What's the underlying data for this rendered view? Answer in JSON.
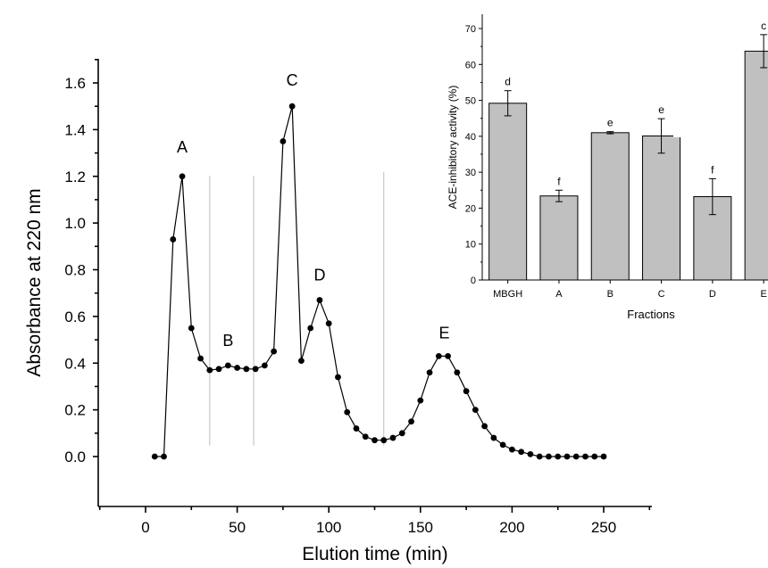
{
  "chart_data": [
    {
      "type": "line",
      "title": "",
      "xlabel": "Elution time (min)",
      "ylabel": "Absorbance at 220 nm",
      "xlim": [
        -25,
        275
      ],
      "ylim": [
        -0.3,
        1.7
      ],
      "xticks": [
        "0",
        "50",
        "100",
        "150",
        "200",
        "250"
      ],
      "yticks": [
        "0.0",
        "0.2",
        "0.4",
        "0.6",
        "0.8",
        "1.0",
        "1.2",
        "1.4",
        "1.6"
      ],
      "grid": false,
      "markers": "filled circles",
      "x": [
        5,
        10,
        15,
        20,
        25,
        30,
        35,
        40,
        45,
        50,
        55,
        60,
        65,
        70,
        75,
        80,
        85,
        90,
        95,
        100,
        105,
        110,
        115,
        120,
        125,
        130,
        135,
        140,
        145,
        150,
        155,
        160,
        165,
        170,
        175,
        180,
        185,
        190,
        195,
        200,
        205,
        210,
        215,
        220,
        225,
        230,
        235,
        240,
        245,
        250
      ],
      "y": [
        0.0,
        0.0,
        0.93,
        1.2,
        0.55,
        0.42,
        0.37,
        0.375,
        0.39,
        0.38,
        0.375,
        0.375,
        0.39,
        0.45,
        1.35,
        1.5,
        0.41,
        0.55,
        0.67,
        0.57,
        0.34,
        0.19,
        0.12,
        0.085,
        0.07,
        0.07,
        0.08,
        0.1,
        0.15,
        0.24,
        0.36,
        0.43,
        0.43,
        0.36,
        0.28,
        0.2,
        0.13,
        0.08,
        0.05,
        0.03,
        0.02,
        0.01,
        0.0,
        0.0,
        0.0,
        0.0,
        0.0,
        0.0,
        0.0,
        0.0
      ],
      "peak_labels": [
        {
          "text": "A",
          "x": 20,
          "y": 1.2
        },
        {
          "text": "B",
          "x": 45,
          "y": 0.39
        },
        {
          "text": "C",
          "x": 80,
          "y": 1.5
        },
        {
          "text": "D",
          "x": 95,
          "y": 0.67
        },
        {
          "text": "E",
          "x": 163,
          "y": 0.43
        }
      ],
      "fraction_cut_times": [
        35,
        59,
        130
      ]
    },
    {
      "type": "bar",
      "title": "",
      "xlabel": "Fractions",
      "ylabel": "ACE-inhibitory activity (%)",
      "ylim": [
        0,
        75
      ],
      "yticks": [
        "0",
        "10",
        "20",
        "30",
        "40",
        "50",
        "60",
        "70"
      ],
      "grid": false,
      "categories": [
        "MBGH",
        "A",
        "B",
        "C",
        "D",
        "E"
      ],
      "values": [
        49.2,
        23.4,
        41.0,
        40.1,
        23.2,
        63.7
      ],
      "errors": [
        3.5,
        1.6,
        0.3,
        4.8,
        5.0,
        4.6
      ],
      "significance_letters": [
        "d",
        "f",
        "e",
        "e",
        "f",
        "c"
      ]
    }
  ]
}
